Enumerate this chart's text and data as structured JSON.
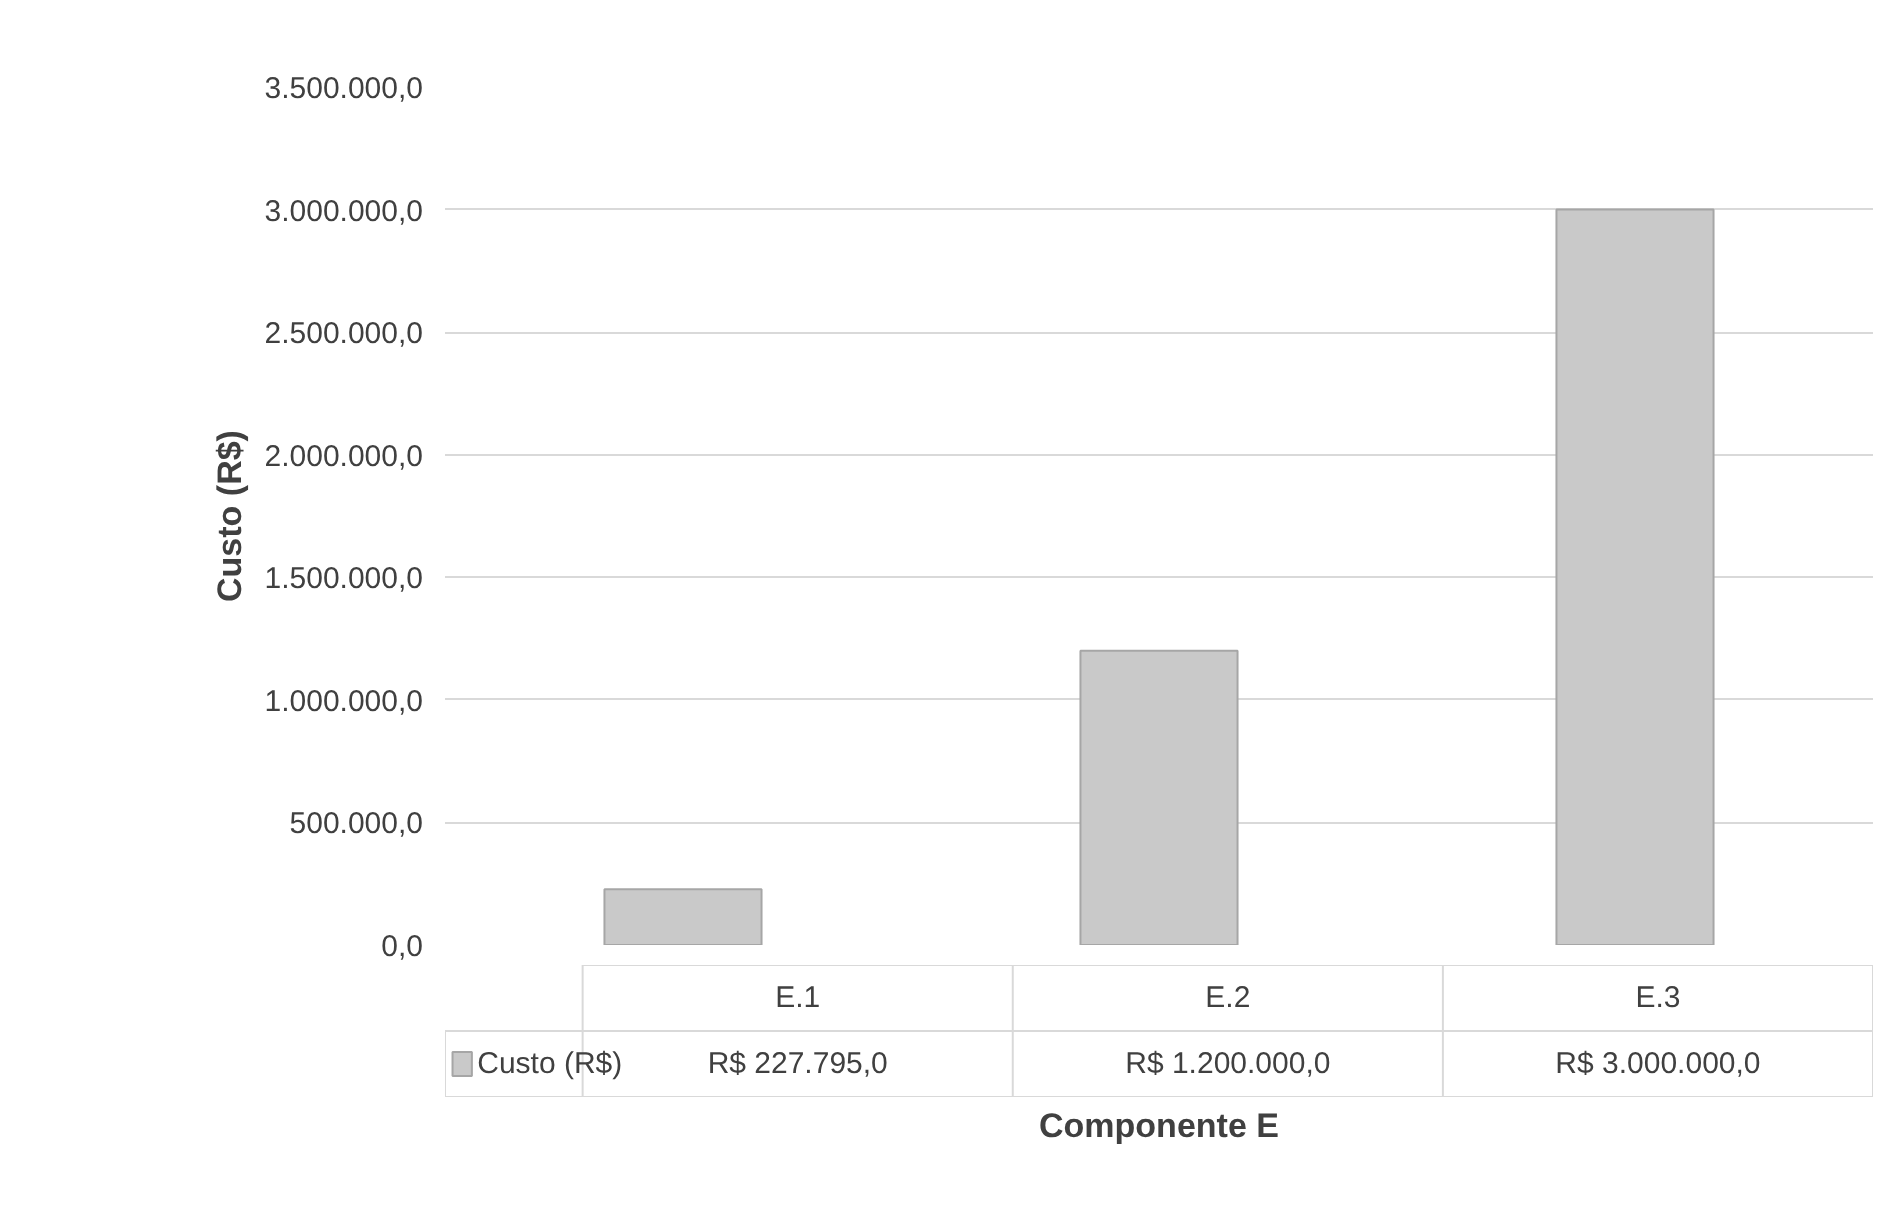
{
  "chart_data": {
    "type": "bar",
    "xlabel": "Componente E",
    "ylabel": "Custo (R$)",
    "categories": [
      "E.1",
      "E.2",
      "E.3"
    ],
    "series": [
      {
        "name": "Custo (R$)",
        "color": "#c9c9c9",
        "values": [
          227795,
          1200000,
          3000000
        ],
        "value_labels": [
          "R$ 227.795,0",
          "R$ 1.200.000,0",
          "R$ 3.000.000,0"
        ]
      }
    ],
    "ylim": [
      0,
      3500000
    ],
    "yticks": [
      {
        "value": 0,
        "label": "0,0"
      },
      {
        "value": 500000,
        "label": "500.000,0"
      },
      {
        "value": 1000000,
        "label": "1.000.000,0"
      },
      {
        "value": 1500000,
        "label": "1.500.000,0"
      },
      {
        "value": 2000000,
        "label": "2.000.000,0"
      },
      {
        "value": 2500000,
        "label": "2.500.000,0"
      },
      {
        "value": 3000000,
        "label": "3.000.000,0"
      },
      {
        "value": 3500000,
        "label": "3.500.000,0"
      }
    ],
    "grid": "y",
    "legend": "bottom left"
  }
}
